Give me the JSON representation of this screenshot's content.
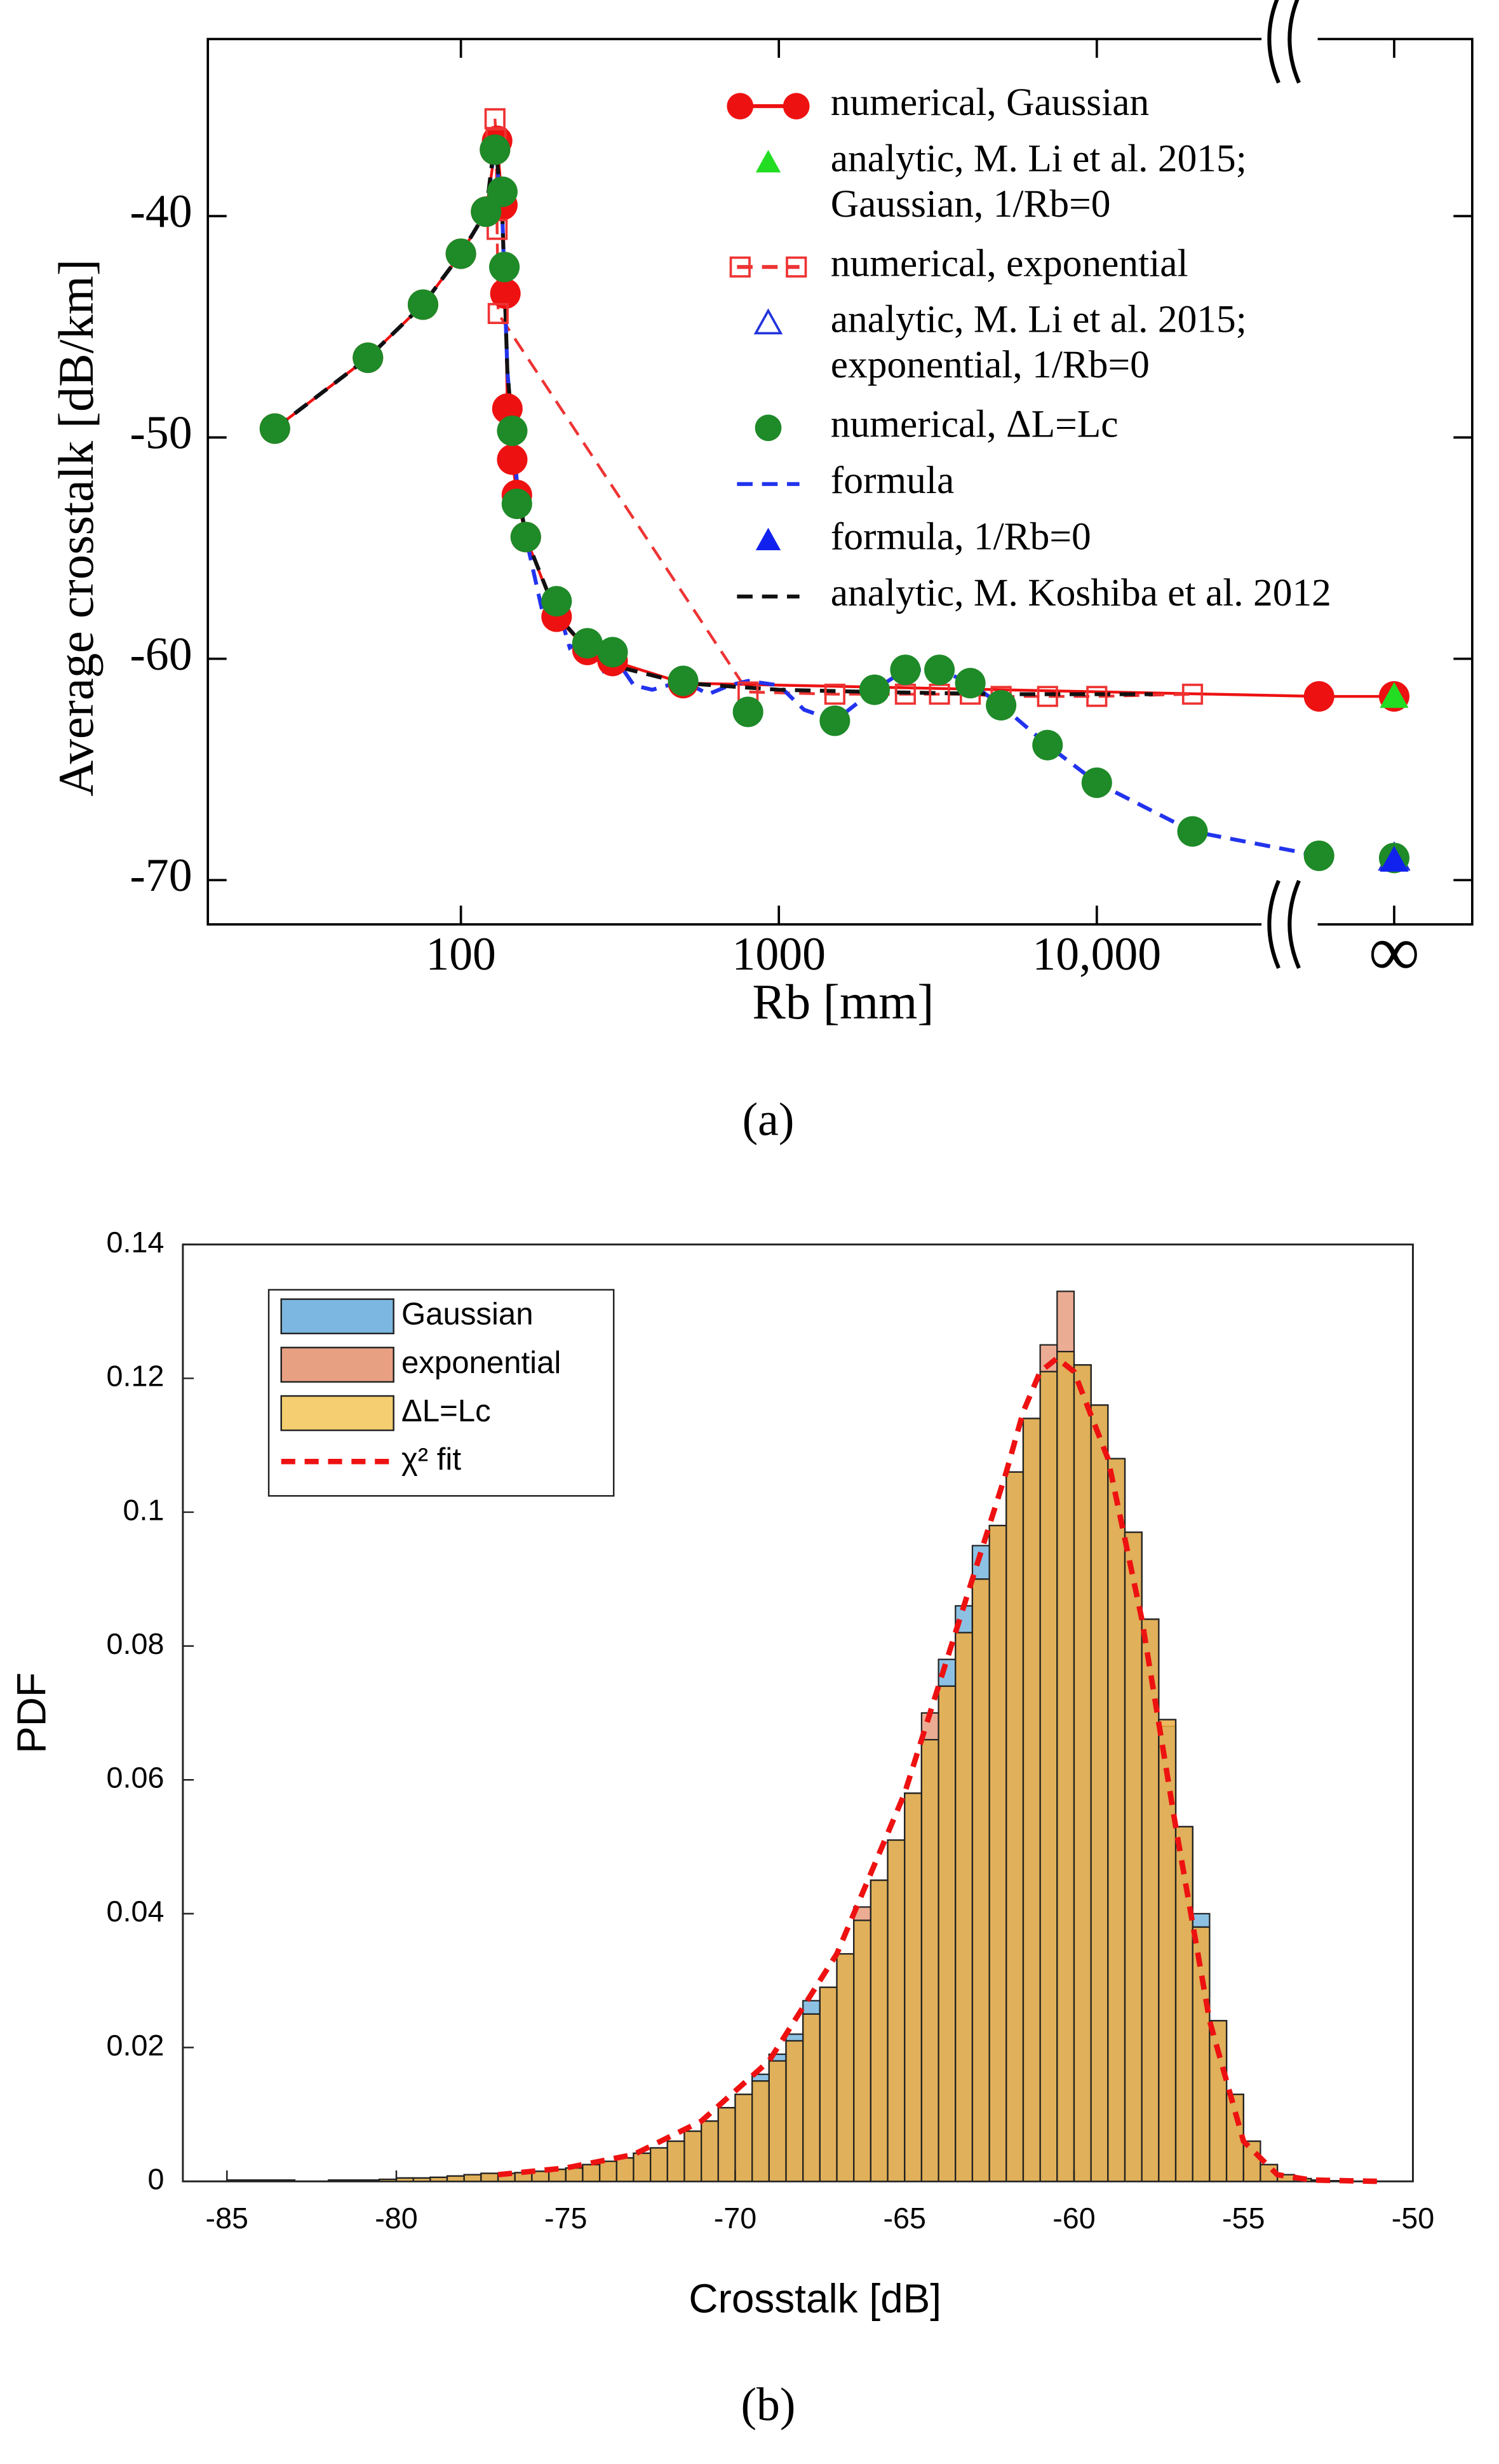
{
  "chart_data": [
    {
      "type": "line",
      "caption": "(a)",
      "x_label": "Rb [mm]",
      "y_label": "Average crosstalk [dB/km]",
      "log_x": true,
      "xlim": [
        16,
        60000
      ],
      "ylim": [
        -72,
        -32
      ],
      "xticks": [
        100,
        1000,
        {
          "value": 10000,
          "label": "10,000"
        },
        "∞"
      ],
      "yticks": [
        -40,
        -50,
        -60,
        -70
      ],
      "series": [
        {
          "name": "numerical, Gaussian",
          "color": "#ee1111",
          "style": "line-markers",
          "marker": "circle",
          "x": [
            26,
            51,
            76,
            100,
            120,
            128,
            130,
            135,
            138,
            140,
            145,
            150,
            160,
            200,
            250,
            300,
            500,
            50000,
            "∞"
          ],
          "values": [
            -49.6,
            -46.4,
            -44.0,
            -41.7,
            -39.8,
            -37.0,
            -36.6,
            -39.5,
            -43.5,
            -48.7,
            -51.0,
            -52.6,
            -54.5,
            -58.1,
            -59.6,
            -60.1,
            -61.1,
            -61.7,
            -61.7
          ]
        },
        {
          "name": "analytic, M. Li et al. 2015; Gaussian, 1/Rb=0",
          "color": "#22dd22",
          "style": "markers",
          "marker": "triangle",
          "x": [
            "∞"
          ],
          "values": [
            -61.7
          ]
        },
        {
          "name": "numerical, exponential",
          "color": "#ee3333",
          "style": "dashed-markers",
          "marker": "open-square",
          "x": [
            128,
            129,
            130,
            131,
            800,
            1500,
            2500,
            3200,
            4000,
            5000,
            7000,
            10000,
            20000
          ],
          "values": [
            -35.6,
            -36.5,
            -40.6,
            -44.4,
            -61.5,
            -61.6,
            -61.6,
            -61.6,
            -61.6,
            -61.7,
            -61.7,
            -61.7,
            -61.6
          ]
        },
        {
          "name": "analytic, M. Li et al. 2015; exponential, 1/Rb=0",
          "color": "#2233dd",
          "style": "markers",
          "marker": "open-triangle",
          "x": [
            "∞"
          ],
          "values": [
            -69.0
          ]
        },
        {
          "name": "numerical, ΔL=Lc",
          "color": "#1e8a28",
          "style": "markers",
          "marker": "circle",
          "x": [
            26,
            51,
            76,
            100,
            120,
            128,
            135,
            137,
            145,
            150,
            160,
            200,
            250,
            300,
            500,
            800,
            1500,
            2000,
            2500,
            3200,
            4000,
            5000,
            7000,
            10000,
            20000,
            50000,
            "∞"
          ],
          "values": [
            -49.6,
            -46.4,
            -44.0,
            -41.7,
            -39.8,
            -37.0,
            -38.9,
            -42.3,
            -49.7,
            -53.0,
            -54.5,
            -57.4,
            -59.3,
            -59.7,
            -61.0,
            -62.4,
            -62.8,
            -61.4,
            -60.5,
            -60.5,
            -61.1,
            -62.1,
            -63.9,
            -65.6,
            -67.8,
            -68.9,
            -69.0
          ]
        },
        {
          "name": "formula",
          "color": "#2233ee",
          "style": "dashed",
          "x": [
            26,
            51,
            76,
            100,
            120,
            128,
            135,
            140,
            150,
            160,
            180,
            200,
            220,
            250,
            280,
            300,
            350,
            400,
            500,
            600,
            700,
            800,
            1000,
            1200,
            1500,
            2000,
            2500,
            3200,
            4000,
            5000,
            7000,
            10000,
            20000,
            50000
          ],
          "values": [
            -49.6,
            -46.4,
            -44.0,
            -41.7,
            -39.8,
            -36.8,
            -40.0,
            -47.0,
            -52.0,
            -54.5,
            -57.8,
            -57.5,
            -59.5,
            -59.0,
            -60.5,
            -59.8,
            -61.2,
            -61.4,
            -61.0,
            -61.6,
            -61.2,
            -61.0,
            -61.2,
            -62.3,
            -62.8,
            -61.4,
            -60.5,
            -60.5,
            -61.1,
            -62.1,
            -63.9,
            -65.6,
            -67.8,
            -68.9
          ]
        },
        {
          "name": "formula, 1/Rb=0",
          "color": "#1122ee",
          "style": "markers",
          "marker": "triangle",
          "x": [
            "∞"
          ],
          "values": [
            -69.1
          ]
        },
        {
          "name": "analytic, M. Koshiba et al. 2012",
          "color": "#111111",
          "style": "dashed",
          "x": [
            26,
            51,
            76,
            100,
            120,
            128,
            135,
            140,
            150,
            160,
            200,
            250,
            300,
            500,
            1000,
            2000,
            5000,
            15000
          ],
          "values": [
            -49.6,
            -46.4,
            -44.0,
            -41.7,
            -39.8,
            -36.5,
            -40.0,
            -47.0,
            -52.0,
            -54.5,
            -58.0,
            -59.6,
            -60.3,
            -61.1,
            -61.4,
            -61.5,
            -61.6,
            -61.6
          ]
        }
      ]
    },
    {
      "type": "histogram",
      "caption": "(b)",
      "x_label": "Crosstalk [dB]",
      "y_label": "PDF",
      "xlim": [
        -86.3,
        -50
      ],
      "ylim": [
        0,
        0.14
      ],
      "xticks": [
        -85,
        -80,
        -75,
        -70,
        -65,
        -60,
        -55,
        -50
      ],
      "yticks": [
        0,
        0.02,
        0.04,
        0.06,
        0.08,
        0.1,
        0.12,
        0.14
      ],
      "bins": [
        -85,
        -84.5,
        -84,
        -83.5,
        -83,
        -82.5,
        -82,
        -81.5,
        -81,
        -80.5,
        -80,
        -79.5,
        -79,
        -78.5,
        -78,
        -77.5,
        -77,
        -76.5,
        -76,
        -75.5,
        -75,
        -74.5,
        -74,
        -73.5,
        -73,
        -72.5,
        -72,
        -71.5,
        -71,
        -70.5,
        -70,
        -69.5,
        -69,
        -68.5,
        -68,
        -67.5,
        -67,
        -66.5,
        -66,
        -65.5,
        -65,
        -64.5,
        -64,
        -63.5,
        -63,
        -62.5,
        -62,
        -61.5,
        -61,
        -60.5,
        -60,
        -59.5,
        -59,
        -58.5,
        -58,
        -57.5,
        -57,
        -56.5,
        -56,
        -55.5,
        -55,
        -54.5,
        -54,
        -53.5,
        -53,
        -52.5,
        -52,
        -51.5,
        -51,
        -50.5,
        -50
      ],
      "series": [
        {
          "name": "Gaussian",
          "color": "#4f9fd6",
          "style": "bars",
          "values": [
            0.0002,
            0.0002,
            0.0002,
            0.0002,
            0,
            0,
            0.0002,
            0.0002,
            0.0002,
            0.0003,
            0.0005,
            0.0005,
            0.0006,
            0.0008,
            0.001,
            0.0012,
            0.0012,
            0.0013,
            0.0015,
            0.0018,
            0.002,
            0.0025,
            0.003,
            0.0035,
            0.0042,
            0.005,
            0.006,
            0.0075,
            0.009,
            0.011,
            0.013,
            0.016,
            0.019,
            0.022,
            0.027,
            0.029,
            0.034,
            0.039,
            0.045,
            0.051,
            0.058,
            0.066,
            0.078,
            0.086,
            0.095,
            0.098,
            0.106,
            0.114,
            0.121,
            0.124,
            0.122,
            0.116,
            0.108,
            0.097,
            0.084,
            0.068,
            0.053,
            0.04,
            0.024,
            0.013,
            0.006,
            0.0025,
            0.001,
            0.0004,
            0.0002,
            0.0001,
            0,
            0,
            0,
            0
          ]
        },
        {
          "name": "exponential",
          "color": "#e0805a",
          "style": "bars",
          "values": [
            0.0002,
            0.0002,
            0.0002,
            0.0002,
            0,
            0,
            0.0002,
            0.0002,
            0.0002,
            0.0003,
            0.0005,
            0.0005,
            0.0006,
            0.0008,
            0.001,
            0.0012,
            0.0012,
            0.0013,
            0.0015,
            0.0018,
            0.002,
            0.0025,
            0.003,
            0.0035,
            0.0042,
            0.005,
            0.006,
            0.0075,
            0.009,
            0.011,
            0.013,
            0.015,
            0.018,
            0.021,
            0.025,
            0.029,
            0.034,
            0.041,
            0.045,
            0.051,
            0.058,
            0.07,
            0.074,
            0.082,
            0.09,
            0.098,
            0.106,
            0.114,
            0.125,
            0.133,
            0.122,
            0.116,
            0.108,
            0.097,
            0.084,
            0.069,
            0.053,
            0.038,
            0.024,
            0.013,
            0.006,
            0.0025,
            0.001,
            0.0004,
            0.0002,
            0.0001,
            0,
            0,
            0,
            0
          ]
        },
        {
          "name": "ΔL=Lc",
          "color": "#f0be40",
          "style": "bars",
          "values": [
            0.0002,
            0.0002,
            0.0002,
            0.0002,
            0,
            0,
            0.0002,
            0.0002,
            0.0002,
            0.0003,
            0.0005,
            0.0005,
            0.0006,
            0.0008,
            0.001,
            0.0012,
            0.0012,
            0.0013,
            0.0015,
            0.0018,
            0.002,
            0.0025,
            0.003,
            0.0035,
            0.0042,
            0.005,
            0.006,
            0.0075,
            0.009,
            0.011,
            0.013,
            0.015,
            0.018,
            0.021,
            0.025,
            0.029,
            0.034,
            0.039,
            0.045,
            0.051,
            0.058,
            0.066,
            0.074,
            0.082,
            0.09,
            0.098,
            0.106,
            0.114,
            0.121,
            0.124,
            0.122,
            0.116,
            0.108,
            0.097,
            0.084,
            0.069,
            0.053,
            0.038,
            0.024,
            0.013,
            0.006,
            0.0025,
            0.001,
            0.0004,
            0.0002,
            0.0001,
            0,
            0,
            0,
            0
          ]
        },
        {
          "name": "χ² fit",
          "color": "#ee1111",
          "style": "dashed",
          "x": [
            -77,
            -75,
            -73,
            -71,
            -69,
            -67,
            -65,
            -64,
            -63,
            -62,
            -61.5,
            -61,
            -60.5,
            -60,
            -59,
            -58,
            -57,
            -56,
            -55,
            -54,
            -53,
            -51
          ],
          "values": [
            0.001,
            0.002,
            0.004,
            0.009,
            0.018,
            0.034,
            0.058,
            0.074,
            0.09,
            0.106,
            0.115,
            0.121,
            0.123,
            0.121,
            0.108,
            0.084,
            0.053,
            0.024,
            0.006,
            0.001,
            0.0002,
            0
          ]
        }
      ]
    }
  ]
}
